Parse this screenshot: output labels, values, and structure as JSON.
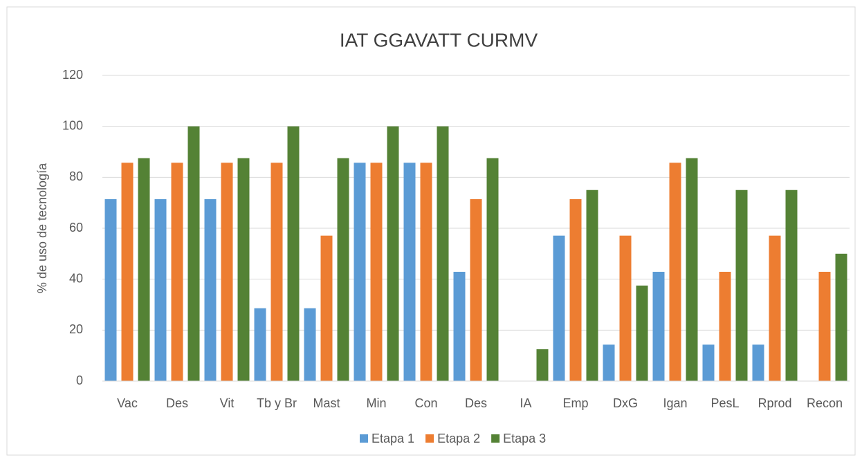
{
  "chart_data": {
    "type": "bar",
    "title": "IAT GGAVATT CURMV",
    "ylabel": "% de uso de tecnología",
    "categories": [
      "Vac",
      "Des",
      "Vit",
      "Tb y Br",
      "Mast",
      "Min",
      "Con",
      "Des",
      "IA",
      "Emp",
      "DxG",
      "Igan",
      "PesL",
      "Rprod",
      "Recon"
    ],
    "series": [
      {
        "name": "Etapa 1",
        "color": "#5b9bd5",
        "values": [
          71.4,
          71.4,
          71.4,
          28.6,
          28.6,
          85.7,
          85.7,
          42.9,
          0,
          57.1,
          14.3,
          42.9,
          14.3,
          14.3,
          0
        ]
      },
      {
        "name": "Etapa 2",
        "color": "#ed7d31",
        "values": [
          85.7,
          85.7,
          85.7,
          85.7,
          57.1,
          85.7,
          85.7,
          71.4,
          0,
          71.4,
          57.1,
          85.7,
          42.9,
          57.1,
          42.9
        ]
      },
      {
        "name": "Etapa 3",
        "color": "#548235",
        "values": [
          87.5,
          100,
          87.5,
          100,
          87.5,
          100,
          100,
          87.5,
          12.5,
          75,
          37.5,
          87.5,
          75,
          75,
          50
        ]
      }
    ],
    "ylim": [
      0,
      120
    ],
    "yticks": [
      0,
      20,
      40,
      60,
      80,
      100,
      120
    ],
    "grid": true,
    "legend": "bottom"
  }
}
